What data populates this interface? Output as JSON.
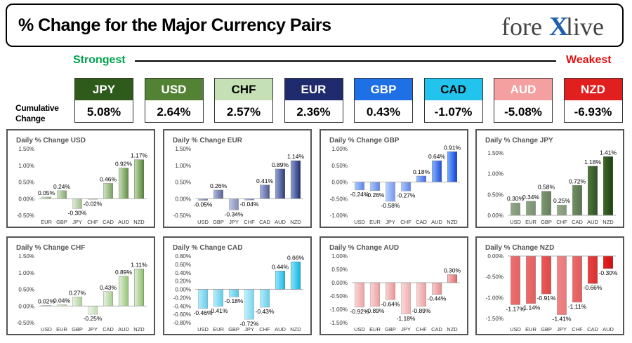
{
  "header": {
    "title": "% Change for the Major Currency Pairs",
    "logo_left": "fore",
    "logo_x": "X",
    "logo_right": "live"
  },
  "strength": {
    "strongest": "Strongest",
    "weakest": "Weakest"
  },
  "cumulative_label": "Cumulative Change",
  "currencies": [
    {
      "code": "JPY",
      "value": "5.08%",
      "color": "#2e5a1c",
      "text_color": "#ffffff"
    },
    {
      "code": "USD",
      "value": "2.64%",
      "color": "#548235",
      "text_color": "#ffffff"
    },
    {
      "code": "CHF",
      "value": "2.57%",
      "color": "#c5e0b4",
      "text_color": "#000000"
    },
    {
      "code": "EUR",
      "value": "2.36%",
      "color": "#1f2b6c",
      "text_color": "#ffffff"
    },
    {
      "code": "GBP",
      "value": "0.43%",
      "color": "#1f6fe5",
      "text_color": "#ffffff"
    },
    {
      "code": "CAD",
      "value": "-1.07%",
      "color": "#22c4ee",
      "text_color": "#000000"
    },
    {
      "code": "AUD",
      "value": "-5.08%",
      "color": "#f4a0a0",
      "text_color": "#ffffff"
    },
    {
      "code": "NZD",
      "value": "-6.93%",
      "color": "#e21f1f",
      "text_color": "#ffffff"
    }
  ],
  "chart_data": [
    {
      "type": "bar",
      "title": "Daily % Change USD",
      "categories": [
        "EUR",
        "GBP",
        "JPY",
        "CHF",
        "CAD",
        "AUD",
        "NZD"
      ],
      "values": [
        0.05,
        0.24,
        -0.3,
        -0.02,
        0.46,
        0.92,
        1.17
      ],
      "labels": [
        "0.05%",
        "0.24%",
        "-0.30%",
        "-0.02%",
        "0.46%",
        "0.92%",
        "1.17%"
      ],
      "yticks": [
        1.5,
        1.0,
        0.5,
        0.0,
        -0.5
      ],
      "ytick_labels": [
        "1.50%",
        "1.00%",
        "0.50%",
        "0.00%",
        "-0.50%"
      ],
      "ylim": [
        -0.5,
        1.5
      ],
      "colors": [
        "#c5e0b4",
        "#548235"
      ]
    },
    {
      "type": "bar",
      "title": "Daily % Change EUR",
      "categories": [
        "USD",
        "GBP",
        "JPY",
        "CHF",
        "CAD",
        "AUD",
        "NZD"
      ],
      "values": [
        -0.05,
        0.26,
        -0.34,
        -0.04,
        0.41,
        0.89,
        1.14
      ],
      "labels": [
        "-0.05%",
        "0.26%",
        "-0.34%",
        "-0.04%",
        "0.41%",
        "0.89%",
        "1.14%"
      ],
      "yticks": [
        1.5,
        1.0,
        0.5,
        0.0,
        -0.5
      ],
      "ytick_labels": [
        "1.50%",
        "1.00%",
        "0.50%",
        "0.00%",
        "-0.50%"
      ],
      "ylim": [
        -0.5,
        1.5
      ],
      "colors": [
        "#8da0d8",
        "#1f2b6c"
      ]
    },
    {
      "type": "bar",
      "title": "Daily % Change GBP",
      "categories": [
        "USD",
        "EUR",
        "JPY",
        "CHF",
        "CAD",
        "AUD",
        "NZD"
      ],
      "values": [
        -0.24,
        -0.26,
        -0.58,
        -0.27,
        0.18,
        0.64,
        0.91
      ],
      "labels": [
        "-0.24%",
        "-0.26%",
        "-0.58%",
        "-0.27%",
        "0.18%",
        "0.64%",
        "0.91%"
      ],
      "yticks": [
        1.0,
        0.5,
        0.0,
        -0.5,
        -1.0
      ],
      "ytick_labels": [
        "1.00%",
        "0.50%",
        "0.00%",
        "-0.50%",
        "-1.00%"
      ],
      "ylim": [
        -1.0,
        1.0
      ],
      "colors": [
        "#7fb0ff",
        "#0a3fd8"
      ]
    },
    {
      "type": "bar",
      "title": "Daily % Change JPY",
      "categories": [
        "USD",
        "EUR",
        "GBP",
        "CHF",
        "CAD",
        "AUD",
        "NZD"
      ],
      "values": [
        0.3,
        0.34,
        0.58,
        0.25,
        0.72,
        1.18,
        1.41
      ],
      "labels": [
        "0.30%",
        "0.34%",
        "0.58%",
        "0.25%",
        "0.72%",
        "1.18%",
        "1.41%"
      ],
      "yticks": [
        1.5,
        1.0,
        0.5,
        0.0
      ],
      "ytick_labels": [
        "1.50%",
        "1.00%",
        "0.50%",
        "0.00%"
      ],
      "ylim": [
        0.0,
        1.6
      ],
      "colors": [
        "#3d6b28",
        "#1f3f12"
      ]
    },
    {
      "type": "bar",
      "title": "Daily % Change CHF",
      "categories": [
        "USD",
        "EUR",
        "GBP",
        "JPY",
        "CAD",
        "AUD",
        "NZD"
      ],
      "values": [
        0.02,
        0.04,
        0.27,
        -0.25,
        0.43,
        0.89,
        1.11
      ],
      "labels": [
        "0.02%",
        "0.04%",
        "0.27%",
        "-0.25%",
        "0.43%",
        "0.89%",
        "1.11%"
      ],
      "yticks": [
        1.5,
        1.0,
        0.5,
        0.0,
        -0.5
      ],
      "ytick_labels": [
        "1.50%",
        "1.00%",
        "0.50%",
        "0.00%",
        "-0.50%"
      ],
      "ylim": [
        -0.5,
        1.5
      ],
      "colors": [
        "#e2f0d9",
        "#8cbf6a"
      ]
    },
    {
      "type": "bar",
      "title": "Daily % Change CAD",
      "categories": [
        "USD",
        "EUR",
        "GBP",
        "JPY",
        "CHF",
        "AUD",
        "NZD"
      ],
      "values": [
        -0.46,
        -0.41,
        -0.18,
        -0.72,
        -0.43,
        0.44,
        0.66
      ],
      "labels": [
        "-0.46%",
        "-0.41%",
        "-0.18%",
        "-0.72%",
        "-0.43%",
        "0.44%",
        "0.66%"
      ],
      "yticks": [
        0.8,
        0.6,
        0.4,
        0.2,
        0.0,
        -0.2,
        -0.4,
        -0.6,
        -0.8
      ],
      "ytick_labels": [
        "0.80%",
        "0.60%",
        "0.40%",
        "0.20%",
        "0.00%",
        "-0.20%",
        "-0.40%",
        "-0.60%",
        "-0.80%"
      ],
      "ylim": [
        -0.8,
        0.8
      ],
      "colors": [
        "#8ee6fb",
        "#0fb1e0"
      ]
    },
    {
      "type": "bar",
      "title": "Daily % Change AUD",
      "categories": [
        "USD",
        "EUR",
        "GBP",
        "JPY",
        "CHF",
        "CAD",
        "NZD"
      ],
      "values": [
        -0.92,
        -0.89,
        -0.64,
        -1.18,
        -0.89,
        -0.44,
        0.3
      ],
      "labels": [
        "-0.92%",
        "-0.89%",
        "-0.64%",
        "-1.18%",
        "-0.89%",
        "-0.44%",
        "0.30%"
      ],
      "yticks": [
        1.0,
        0.5,
        0.0,
        -0.5,
        -1.0,
        -1.5
      ],
      "ytick_labels": [
        "1.00%",
        "0.50%",
        "0.00%",
        "-0.50%",
        "-1.00%",
        "-1.50%"
      ],
      "ylim": [
        -1.5,
        1.0
      ],
      "colors": [
        "#f8c0c0",
        "#e06a6a"
      ]
    },
    {
      "type": "bar",
      "title": "Daily % Change NZD",
      "categories": [
        "USD",
        "EUR",
        "GBP",
        "JPY",
        "CHF",
        "CAD",
        "AUD"
      ],
      "values": [
        -1.17,
        -1.14,
        -0.91,
        -1.41,
        -1.11,
        -0.66,
        -0.3
      ],
      "labels": [
        "-1.17%",
        "-1.14%",
        "-0.91%",
        "-1.41%",
        "-1.11%",
        "-0.66%",
        "-0.30%"
      ],
      "yticks": [
        0.0,
        -0.5,
        -1.0,
        -1.5
      ],
      "ytick_labels": [
        "0.00%",
        "-0.50%",
        "-1.00%",
        "-1.50%"
      ],
      "ylim": [
        -1.6,
        0.0
      ],
      "colors": [
        "#e82020",
        "#d01010"
      ]
    }
  ]
}
